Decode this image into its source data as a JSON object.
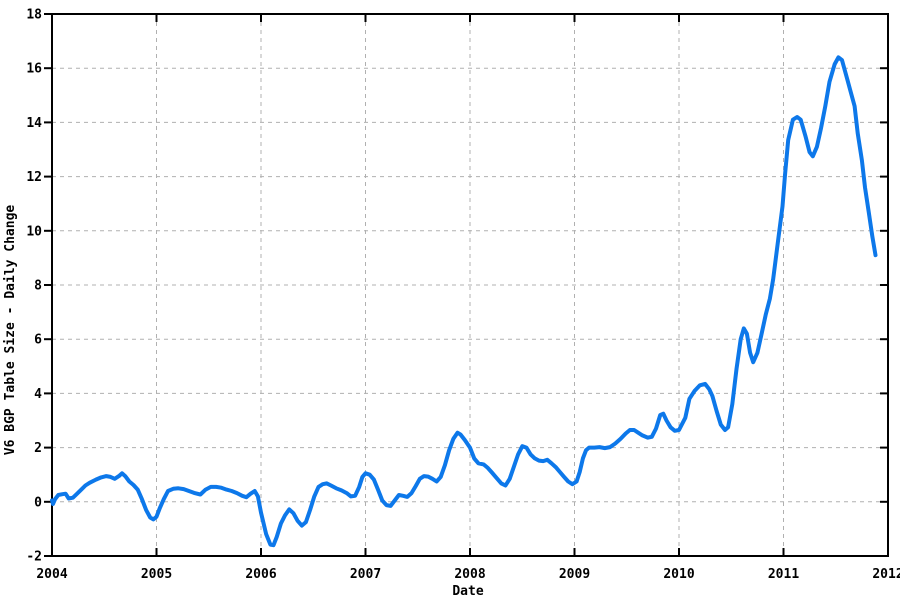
{
  "figure": {
    "xlabel": "Date",
    "ylabel": "V6 BGP Table Size - Daily Change"
  },
  "chart_data": {
    "type": "line",
    "title": "",
    "xlabel": "Date",
    "ylabel": "V6 BGP Table Size - Daily Change",
    "xlim": [
      2004,
      2012
    ],
    "ylim": [
      -2,
      18
    ],
    "x_ticks": [
      2004,
      2005,
      2006,
      2007,
      2008,
      2009,
      2010,
      2011,
      2012
    ],
    "y_ticks": [
      -2,
      0,
      2,
      4,
      6,
      8,
      10,
      12,
      14,
      16,
      18
    ],
    "grid": "dashed",
    "legend": false,
    "colors": {
      "line": "#0d78ea",
      "grid": "#b0b0b0",
      "axis": "#000000",
      "background": "#ffffff"
    },
    "series": [
      {
        "name": "V6 BGP table size daily change",
        "points": [
          [
            2004.0,
            0.05
          ],
          [
            2004.01,
            -0.08
          ],
          [
            2004.03,
            0.1
          ],
          [
            2004.06,
            0.25
          ],
          [
            2004.1,
            0.28
          ],
          [
            2004.13,
            0.3
          ],
          [
            2004.16,
            0.12
          ],
          [
            2004.2,
            0.15
          ],
          [
            2004.24,
            0.3
          ],
          [
            2004.28,
            0.45
          ],
          [
            2004.32,
            0.6
          ],
          [
            2004.36,
            0.7
          ],
          [
            2004.42,
            0.82
          ],
          [
            2004.47,
            0.9
          ],
          [
            2004.52,
            0.95
          ],
          [
            2004.56,
            0.92
          ],
          [
            2004.6,
            0.85
          ],
          [
            2004.64,
            0.95
          ],
          [
            2004.67,
            1.05
          ],
          [
            2004.7,
            0.95
          ],
          [
            2004.74,
            0.75
          ],
          [
            2004.78,
            0.62
          ],
          [
            2004.82,
            0.45
          ],
          [
            2004.86,
            0.1
          ],
          [
            2004.9,
            -0.3
          ],
          [
            2004.94,
            -0.58
          ],
          [
            2004.97,
            -0.65
          ],
          [
            2005.0,
            -0.55
          ],
          [
            2005.03,
            -0.25
          ],
          [
            2005.07,
            0.1
          ],
          [
            2005.11,
            0.4
          ],
          [
            2005.16,
            0.48
          ],
          [
            2005.21,
            0.5
          ],
          [
            2005.26,
            0.47
          ],
          [
            2005.31,
            0.4
          ],
          [
            2005.36,
            0.33
          ],
          [
            2005.42,
            0.27
          ],
          [
            2005.47,
            0.45
          ],
          [
            2005.52,
            0.55
          ],
          [
            2005.57,
            0.55
          ],
          [
            2005.62,
            0.52
          ],
          [
            2005.67,
            0.45
          ],
          [
            2005.72,
            0.4
          ],
          [
            2005.77,
            0.32
          ],
          [
            2005.82,
            0.22
          ],
          [
            2005.86,
            0.17
          ],
          [
            2005.9,
            0.3
          ],
          [
            2005.94,
            0.4
          ],
          [
            2005.97,
            0.2
          ],
          [
            2006.0,
            -0.4
          ],
          [
            2006.05,
            -1.2
          ],
          [
            2006.09,
            -1.58
          ],
          [
            2006.12,
            -1.6
          ],
          [
            2006.15,
            -1.3
          ],
          [
            2006.19,
            -0.8
          ],
          [
            2006.23,
            -0.5
          ],
          [
            2006.27,
            -0.28
          ],
          [
            2006.31,
            -0.42
          ],
          [
            2006.35,
            -0.7
          ],
          [
            2006.39,
            -0.88
          ],
          [
            2006.43,
            -0.75
          ],
          [
            2006.47,
            -0.3
          ],
          [
            2006.51,
            0.2
          ],
          [
            2006.55,
            0.55
          ],
          [
            2006.59,
            0.65
          ],
          [
            2006.63,
            0.68
          ],
          [
            2006.67,
            0.6
          ],
          [
            2006.72,
            0.5
          ],
          [
            2006.77,
            0.42
          ],
          [
            2006.82,
            0.32
          ],
          [
            2006.86,
            0.2
          ],
          [
            2006.9,
            0.22
          ],
          [
            2006.94,
            0.55
          ],
          [
            2006.97,
            0.92
          ],
          [
            2007.0,
            1.05
          ],
          [
            2007.04,
            1.0
          ],
          [
            2007.08,
            0.82
          ],
          [
            2007.12,
            0.45
          ],
          [
            2007.16,
            0.05
          ],
          [
            2007.2,
            -0.12
          ],
          [
            2007.24,
            -0.15
          ],
          [
            2007.28,
            0.05
          ],
          [
            2007.32,
            0.25
          ],
          [
            2007.36,
            0.22
          ],
          [
            2007.4,
            0.18
          ],
          [
            2007.44,
            0.32
          ],
          [
            2007.48,
            0.58
          ],
          [
            2007.52,
            0.85
          ],
          [
            2007.56,
            0.95
          ],
          [
            2007.6,
            0.93
          ],
          [
            2007.64,
            0.85
          ],
          [
            2007.68,
            0.75
          ],
          [
            2007.72,
            0.92
          ],
          [
            2007.76,
            1.35
          ],
          [
            2007.8,
            1.9
          ],
          [
            2007.84,
            2.32
          ],
          [
            2007.88,
            2.55
          ],
          [
            2007.91,
            2.48
          ],
          [
            2007.95,
            2.28
          ],
          [
            2008.0,
            2.0
          ],
          [
            2008.04,
            1.6
          ],
          [
            2008.08,
            1.42
          ],
          [
            2008.13,
            1.38
          ],
          [
            2008.17,
            1.25
          ],
          [
            2008.21,
            1.08
          ],
          [
            2008.25,
            0.9
          ],
          [
            2008.3,
            0.68
          ],
          [
            2008.34,
            0.6
          ],
          [
            2008.38,
            0.85
          ],
          [
            2008.42,
            1.3
          ],
          [
            2008.46,
            1.75
          ],
          [
            2008.5,
            2.05
          ],
          [
            2008.54,
            2.0
          ],
          [
            2008.58,
            1.75
          ],
          [
            2008.62,
            1.6
          ],
          [
            2008.66,
            1.52
          ],
          [
            2008.7,
            1.5
          ],
          [
            2008.74,
            1.55
          ],
          [
            2008.78,
            1.42
          ],
          [
            2008.82,
            1.28
          ],
          [
            2008.86,
            1.1
          ],
          [
            2008.9,
            0.92
          ],
          [
            2008.94,
            0.75
          ],
          [
            2008.98,
            0.65
          ],
          [
            2009.02,
            0.75
          ],
          [
            2009.05,
            1.1
          ],
          [
            2009.08,
            1.6
          ],
          [
            2009.11,
            1.9
          ],
          [
            2009.14,
            2.0
          ],
          [
            2009.19,
            2.0
          ],
          [
            2009.24,
            2.02
          ],
          [
            2009.29,
            1.98
          ],
          [
            2009.34,
            2.02
          ],
          [
            2009.39,
            2.15
          ],
          [
            2009.44,
            2.32
          ],
          [
            2009.49,
            2.52
          ],
          [
            2009.53,
            2.65
          ],
          [
            2009.57,
            2.65
          ],
          [
            2009.61,
            2.55
          ],
          [
            2009.65,
            2.45
          ],
          [
            2009.7,
            2.37
          ],
          [
            2009.74,
            2.4
          ],
          [
            2009.78,
            2.7
          ],
          [
            2009.82,
            3.2
          ],
          [
            2009.85,
            3.25
          ],
          [
            2009.88,
            3.0
          ],
          [
            2009.92,
            2.75
          ],
          [
            2009.96,
            2.62
          ],
          [
            2010.0,
            2.65
          ],
          [
            2010.06,
            3.1
          ],
          [
            2010.1,
            3.8
          ],
          [
            2010.15,
            4.1
          ],
          [
            2010.2,
            4.3
          ],
          [
            2010.25,
            4.35
          ],
          [
            2010.29,
            4.15
          ],
          [
            2010.32,
            3.9
          ],
          [
            2010.36,
            3.35
          ],
          [
            2010.4,
            2.85
          ],
          [
            2010.44,
            2.65
          ],
          [
            2010.47,
            2.75
          ],
          [
            2010.51,
            3.6
          ],
          [
            2010.55,
            4.9
          ],
          [
            2010.59,
            6.0
          ],
          [
            2010.62,
            6.4
          ],
          [
            2010.65,
            6.2
          ],
          [
            2010.68,
            5.5
          ],
          [
            2010.71,
            5.15
          ],
          [
            2010.75,
            5.5
          ],
          [
            2010.79,
            6.2
          ],
          [
            2010.83,
            6.9
          ],
          [
            2010.87,
            7.5
          ],
          [
            2010.9,
            8.2
          ],
          [
            2010.95,
            9.7
          ],
          [
            2010.99,
            10.9
          ],
          [
            2011.015,
            12.1
          ],
          [
            2011.045,
            13.35
          ],
          [
            2011.09,
            14.1
          ],
          [
            2011.13,
            14.2
          ],
          [
            2011.165,
            14.1
          ],
          [
            2011.21,
            13.5
          ],
          [
            2011.25,
            12.9
          ],
          [
            2011.28,
            12.75
          ],
          [
            2011.32,
            13.1
          ],
          [
            2011.36,
            13.8
          ],
          [
            2011.4,
            14.6
          ],
          [
            2011.44,
            15.5
          ],
          [
            2011.49,
            16.15
          ],
          [
            2011.525,
            16.4
          ],
          [
            2011.56,
            16.3
          ],
          [
            2011.61,
            15.6
          ],
          [
            2011.645,
            15.1
          ],
          [
            2011.68,
            14.6
          ],
          [
            2011.71,
            13.6
          ],
          [
            2011.75,
            12.6
          ],
          [
            2011.78,
            11.6
          ],
          [
            2011.815,
            10.7
          ],
          [
            2011.85,
            9.8
          ],
          [
            2011.88,
            9.1
          ]
        ]
      }
    ]
  }
}
